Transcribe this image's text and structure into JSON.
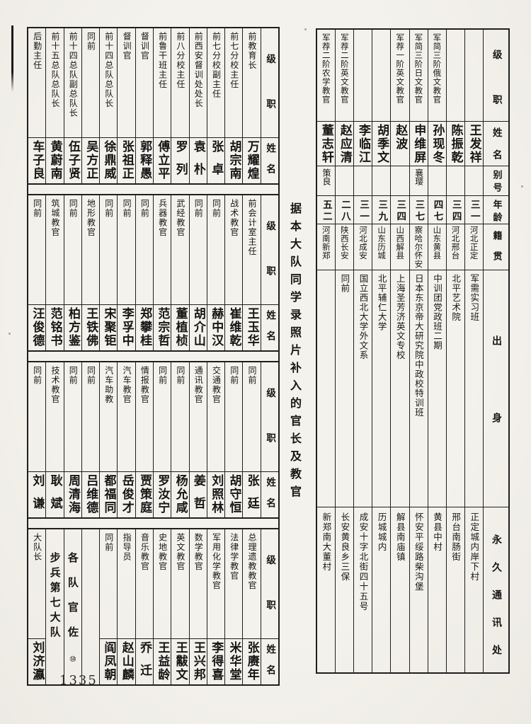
{
  "page": {
    "number": "1335",
    "caption": "据本大队同学录照片补入的官长及教官"
  },
  "colors": {
    "paper": "#f2f0ea",
    "ink": "#161616",
    "grid": "#1f1f1f"
  },
  "left_table": {
    "header": {
      "rank": "级职",
      "name": "姓名"
    },
    "bands": [
      {
        "entries": [
          {
            "rank": "前教育长",
            "name": "万耀煌"
          },
          {
            "rank": "前七分校主任",
            "name": "胡宗南"
          },
          {
            "rank": "前七分校副主任",
            "name": "张卓"
          },
          {
            "rank": "前西安督训处处长",
            "name": "袁朴"
          },
          {
            "rank": "前八分校主任",
            "name": "罗列"
          },
          {
            "rank": "前鲁干班主任",
            "name": "傅立平"
          },
          {
            "rank": "督训官",
            "name": "郭释愚"
          },
          {
            "rank": "督训官",
            "name": "张祖正"
          },
          {
            "rank": "前十四总队总队长",
            "name": "徐鼎威"
          },
          {
            "rank": "同前",
            "name": "吴方正"
          },
          {
            "rank": "前十四总队副总队长",
            "name": "伍子贤"
          },
          {
            "rank": "前十五总队总队长",
            "name": "黄蔚南"
          },
          {
            "rank": "后勤主任",
            "name": "车子良"
          }
        ]
      },
      {
        "entries": [
          {
            "rank": "前会计室主任",
            "name": "王玉华"
          },
          {
            "rank": "战术教官",
            "name": "崔维乾"
          },
          {
            "rank": "同前",
            "name": "赫中汉"
          },
          {
            "rank": "同前",
            "name": "胡介山"
          },
          {
            "rank": "武经教官",
            "name": "董植桢"
          },
          {
            "rank": "兵器教官",
            "name": "范宗哲"
          },
          {
            "rank": "同前",
            "name": "郑攀桂"
          },
          {
            "rank": "同前",
            "name": "李孚中"
          },
          {
            "rank": "同前",
            "name": "宋聚钜"
          },
          {
            "rank": "地形教官",
            "name": "王铁佛"
          },
          {
            "rank": "同前",
            "name": "柏方鉴"
          },
          {
            "rank": "筑城教官",
            "name": "范铭书"
          },
          {
            "rank": "同前",
            "name": "汪俊德"
          }
        ]
      },
      {
        "entries": [
          {
            "rank": "同前",
            "name": "张廷"
          },
          {
            "rank": "同前",
            "name": "胡守恒"
          },
          {
            "rank": "交通教官",
            "name": "刘照林"
          },
          {
            "rank": "通讯教官",
            "name": "姜哲"
          },
          {
            "rank": "同前",
            "name": "杨允咸"
          },
          {
            "rank": "同前",
            "name": "罗汝宁"
          },
          {
            "rank": "情报教官",
            "name": "贾策庭"
          },
          {
            "rank": "汽车教官",
            "name": "岳俊才"
          },
          {
            "rank": "汽车助教",
            "name": "都福同"
          },
          {
            "rank": "同前",
            "name": "吕维德"
          },
          {
            "rank": "同前",
            "name": "周清海"
          },
          {
            "rank": "技术教官",
            "name": "耿斌"
          },
          {
            "rank": "同前",
            "name": "刘谦"
          }
        ]
      },
      {
        "entries": [
          {
            "rank": "总理遗教教官",
            "name": "张赓年"
          },
          {
            "rank": "法律学教官",
            "name": "米华堂"
          },
          {
            "rank": "军用化学教官",
            "name": "李得喜"
          },
          {
            "rank": "数学教官",
            "name": "王兴邦"
          },
          {
            "rank": "英文教官",
            "name": "王黻文"
          },
          {
            "rank": "史地教官",
            "name": "王益龄"
          },
          {
            "rank": "音乐教官",
            "name": "乔迁"
          },
          {
            "rank": "指导员",
            "name": "赵山麟"
          },
          {
            "rank": "同前",
            "name": "阎凤朝"
          },
          {
            "type": "blank"
          },
          {
            "type": "divider",
            "text": "各队官佐",
            "note": "⑩"
          },
          {
            "type": "divider",
            "text": "步兵第七大队"
          },
          {
            "rank": "大队长",
            "name": "刘济瀛"
          }
        ]
      }
    ]
  },
  "right_table": {
    "header": {
      "rank": "级职",
      "name": "姓名",
      "alias": "别号",
      "age": "年龄",
      "origin": "籍贯",
      "background": "出身",
      "address": "永久通讯处"
    },
    "entries": [
      {
        "rank": "",
        "name": "王发祥",
        "alias": "",
        "age": "三一",
        "origin": "河北正定",
        "background": "军需实习班",
        "address": "正定城内岸下村"
      },
      {
        "rank": "",
        "name": "陈振乾",
        "alias": "",
        "age": "三四",
        "origin": "河北邢台",
        "background": "北平艺术院",
        "address": "邢台南肠街"
      },
      {
        "rank": "军简三阶俄文教官",
        "name": "孙现冬",
        "alias": "",
        "age": "四七",
        "origin": "山东黄县",
        "background": "中训团党政班二期",
        "address": "黄县中村"
      },
      {
        "rank": "军简三阶日文教官",
        "name": "申维屏",
        "alias": "襄璎",
        "age": "三七",
        "origin": "察哈尔怀安",
        "background": "日本东京帝大研究院中政校特训班",
        "address": "怀安平绥路柴沟堡"
      },
      {
        "rank": "军荐一阶英文教官",
        "name": "赵波",
        "alias": "",
        "age": "三四",
        "origin": "山西解县",
        "background": "上海圣芳济英文专校",
        "address": "解县南庙镇"
      },
      {
        "rank": "",
        "name": "胡季文",
        "alias": "",
        "age": "三九",
        "origin": "山东历城",
        "background": "北平辅仁大学",
        "address": "历城城内"
      },
      {
        "rank": "",
        "name": "李临江",
        "alias": "",
        "age": "三一",
        "origin": "河北成安",
        "background": "国立西北大学外文系",
        "address": "成安十字北街四十五号"
      },
      {
        "rank": "军荐二阶英文教官",
        "name": "赵应清",
        "alias": "",
        "age": "二八",
        "origin": "陕西长安",
        "background": "同前",
        "address": "长安黄良乡三保"
      },
      {
        "rank": "军荐二阶农学教官",
        "name": "董志轩",
        "alias": "策良",
        "age": "五二",
        "origin": "河南新郑",
        "background": "",
        "address": "新郑南大董村"
      }
    ]
  }
}
